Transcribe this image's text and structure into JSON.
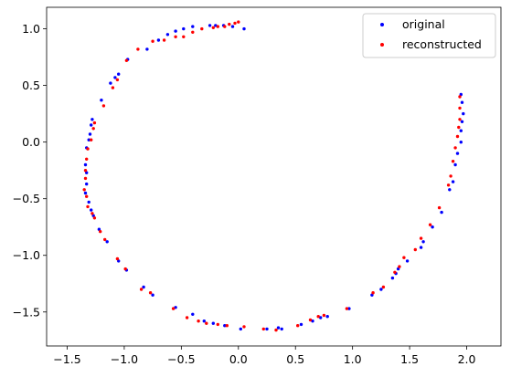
{
  "chart_data": {
    "type": "scatter",
    "title": "",
    "xlabel": "",
    "ylabel": "",
    "xlim": [
      -1.68,
      2.3
    ],
    "ylim": [
      -1.8,
      1.19
    ],
    "xticks": [
      -1.5,
      -1.0,
      -0.5,
      0.0,
      0.5,
      1.0,
      1.5,
      2.0
    ],
    "xtick_labels": [
      "−1.5",
      "−1.0",
      "−0.5",
      "0.0",
      "0.5",
      "1.0",
      "1.5",
      "2.0"
    ],
    "yticks": [
      1.0,
      0.5,
      0.0,
      -0.5,
      -1.0,
      -1.5
    ],
    "ytick_labels": [
      "1.0",
      "0.5",
      "0.0",
      "−0.5",
      "−1.0",
      "−1.5"
    ],
    "grid": false,
    "legend_position": "top-right",
    "series": [
      {
        "name": "original",
        "color": "#0000ff",
        "points": [
          [
            0.05,
            1.0
          ],
          [
            -0.05,
            1.02
          ],
          [
            -0.13,
            1.03
          ],
          [
            -0.2,
            1.03
          ],
          [
            -0.25,
            1.03
          ],
          [
            -0.4,
            1.02
          ],
          [
            -0.48,
            1.0
          ],
          [
            -0.55,
            0.98
          ],
          [
            -0.62,
            0.95
          ],
          [
            -0.7,
            0.9
          ],
          [
            -0.8,
            0.82
          ],
          [
            -0.97,
            0.73
          ],
          [
            -1.05,
            0.6
          ],
          [
            -1.08,
            0.57
          ],
          [
            -1.12,
            0.52
          ],
          [
            -1.2,
            0.37
          ],
          [
            -1.28,
            0.2
          ],
          [
            -1.29,
            0.15
          ],
          [
            -1.3,
            0.07
          ],
          [
            -1.31,
            0.02
          ],
          [
            -1.33,
            -0.05
          ],
          [
            -1.34,
            -0.2
          ],
          [
            -1.33,
            -0.27
          ],
          [
            -1.33,
            -0.37
          ],
          [
            -1.34,
            -0.45
          ],
          [
            -1.31,
            -0.53
          ],
          [
            -1.29,
            -0.6
          ],
          [
            -1.27,
            -0.65
          ],
          [
            -1.22,
            -0.77
          ],
          [
            -1.15,
            -0.88
          ],
          [
            -1.05,
            -1.05
          ],
          [
            -0.98,
            -1.13
          ],
          [
            -0.83,
            -1.28
          ],
          [
            -0.75,
            -1.35
          ],
          [
            -0.55,
            -1.46
          ],
          [
            -0.4,
            -1.52
          ],
          [
            -0.3,
            -1.58
          ],
          [
            -0.22,
            -1.6
          ],
          [
            -0.12,
            -1.62
          ],
          [
            0.02,
            -1.65
          ],
          [
            0.25,
            -1.65
          ],
          [
            0.35,
            -1.64
          ],
          [
            0.38,
            -1.65
          ],
          [
            0.55,
            -1.61
          ],
          [
            0.65,
            -1.58
          ],
          [
            0.72,
            -1.55
          ],
          [
            0.78,
            -1.54
          ],
          [
            0.97,
            -1.47
          ],
          [
            1.17,
            -1.35
          ],
          [
            1.25,
            -1.3
          ],
          [
            1.35,
            -1.2
          ],
          [
            1.38,
            -1.16
          ],
          [
            1.4,
            -1.12
          ],
          [
            1.48,
            -1.05
          ],
          [
            1.6,
            -0.93
          ],
          [
            1.62,
            -0.88
          ],
          [
            1.7,
            -0.75
          ],
          [
            1.78,
            -0.62
          ],
          [
            1.85,
            -0.42
          ],
          [
            1.88,
            -0.35
          ],
          [
            1.9,
            -0.2
          ],
          [
            1.92,
            -0.1
          ],
          [
            1.95,
            0.0
          ],
          [
            1.95,
            0.1
          ],
          [
            1.96,
            0.18
          ],
          [
            1.97,
            0.25
          ],
          [
            1.96,
            0.35
          ],
          [
            1.95,
            0.42
          ]
        ]
      },
      {
        "name": "reconstructed",
        "color": "#ff0000",
        "points": [
          [
            0.0,
            1.06
          ],
          [
            -0.03,
            1.05
          ],
          [
            -0.08,
            1.04
          ],
          [
            -0.12,
            1.02
          ],
          [
            -0.18,
            1.02
          ],
          [
            -0.22,
            1.01
          ],
          [
            -0.32,
            1.0
          ],
          [
            -0.4,
            0.97
          ],
          [
            -0.48,
            0.93
          ],
          [
            -0.55,
            0.93
          ],
          [
            -0.65,
            0.9
          ],
          [
            -0.75,
            0.89
          ],
          [
            -0.88,
            0.82
          ],
          [
            -0.98,
            0.72
          ],
          [
            -1.06,
            0.55
          ],
          [
            -1.1,
            0.48
          ],
          [
            -1.18,
            0.32
          ],
          [
            -1.26,
            0.17
          ],
          [
            -1.27,
            0.12
          ],
          [
            -1.29,
            0.02
          ],
          [
            -1.32,
            -0.06
          ],
          [
            -1.33,
            -0.15
          ],
          [
            -1.34,
            -0.25
          ],
          [
            -1.34,
            -0.32
          ],
          [
            -1.35,
            -0.42
          ],
          [
            -1.33,
            -0.48
          ],
          [
            -1.32,
            -0.57
          ],
          [
            -1.28,
            -0.63
          ],
          [
            -1.26,
            -0.67
          ],
          [
            -1.21,
            -0.79
          ],
          [
            -1.17,
            -0.86
          ],
          [
            -1.06,
            -1.03
          ],
          [
            -0.99,
            -1.12
          ],
          [
            -0.85,
            -1.3
          ],
          [
            -0.77,
            -1.33
          ],
          [
            -0.57,
            -1.47
          ],
          [
            -0.45,
            -1.55
          ],
          [
            -0.35,
            -1.58
          ],
          [
            -0.28,
            -1.6
          ],
          [
            -0.18,
            -1.61
          ],
          [
            -0.1,
            -1.62
          ],
          [
            0.05,
            -1.63
          ],
          [
            0.22,
            -1.65
          ],
          [
            0.33,
            -1.66
          ],
          [
            0.52,
            -1.62
          ],
          [
            0.63,
            -1.57
          ],
          [
            0.7,
            -1.54
          ],
          [
            0.75,
            -1.53
          ],
          [
            0.95,
            -1.47
          ],
          [
            1.18,
            -1.33
          ],
          [
            1.27,
            -1.28
          ],
          [
            1.37,
            -1.15
          ],
          [
            1.41,
            -1.1
          ],
          [
            1.45,
            -1.02
          ],
          [
            1.55,
            -0.95
          ],
          [
            1.6,
            -0.85
          ],
          [
            1.68,
            -0.73
          ],
          [
            1.76,
            -0.58
          ],
          [
            1.84,
            -0.38
          ],
          [
            1.86,
            -0.3
          ],
          [
            1.88,
            -0.17
          ],
          [
            1.9,
            -0.05
          ],
          [
            1.92,
            0.05
          ],
          [
            1.93,
            0.13
          ],
          [
            1.94,
            0.2
          ],
          [
            1.94,
            0.3
          ],
          [
            1.94,
            0.4
          ]
        ]
      }
    ]
  }
}
